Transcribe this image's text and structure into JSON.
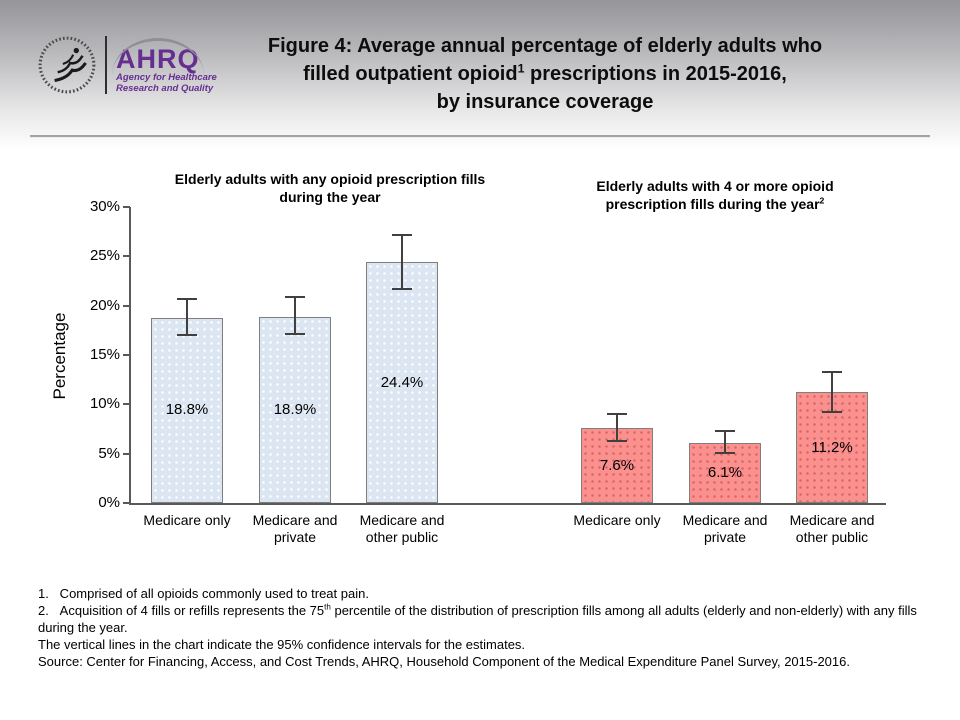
{
  "header": {
    "logo": {
      "acronym": "AHRQ",
      "tagline_line1": "Agency for Healthcare",
      "tagline_line2": "Research and Quality",
      "brand_color": "#662e91"
    },
    "title_line1": "Figure 4: Average annual percentage of elderly adults who",
    "title_line2_pre": "filled outpatient opioid",
    "title_line2_sup": "1",
    "title_line2_post": " prescriptions in 2015-2016,",
    "title_line3": "by insurance coverage"
  },
  "chart_data": {
    "type": "bar",
    "title": "Figure 4: Average annual percentage of elderly adults who filled outpatient opioid prescriptions in 2015-2016, by insurance coverage",
    "ylabel": "Percentage",
    "ylim": [
      0,
      30
    ],
    "ytick_step": 5,
    "ytick_suffix": "%",
    "grid": false,
    "legend": "none",
    "error_bars": "95% confidence intervals",
    "axis_color": "#595959",
    "ci_color": "#404040",
    "groups": [
      {
        "subtitle": "Elderly adults with any opioid prescription fills during the year",
        "subtitle_sup": "",
        "bar_color": "#dce6f2",
        "bar_border_color": "#7f7f7f",
        "categories": [
          "Medicare only",
          "Medicare and private",
          "Medicare and other public"
        ],
        "values": [
          18.8,
          18.9,
          24.4
        ],
        "labels": [
          "18.8%",
          "18.9%",
          "24.4%"
        ],
        "ci_low": [
          17.0,
          17.1,
          21.7
        ],
        "ci_high": [
          20.7,
          20.9,
          27.2
        ]
      },
      {
        "subtitle": "Elderly adults with 4 or more opioid prescription fills during the year",
        "subtitle_sup": "2",
        "bar_color": "#fa918e",
        "bar_border_color": "#7f7f7f",
        "categories": [
          "Medicare only",
          "Medicare and private",
          "Medicare and other public"
        ],
        "values": [
          7.6,
          6.1,
          11.2
        ],
        "labels": [
          "7.6%",
          "6.1%",
          "11.2%"
        ],
        "ci_low": [
          6.3,
          5.1,
          9.2
        ],
        "ci_high": [
          9.0,
          7.3,
          13.3
        ]
      }
    ]
  },
  "footnotes": {
    "note1": "1.   Comprised of all opioids commonly used to treat pain.",
    "note2_pre": "2.   Acquisition of 4 fills or refills represents the 75",
    "note2_sup": "th",
    "note2_post": " percentile of the distribution of prescription fills among all adults (elderly and non-elderly) with any fills during the year.",
    "note3": "The vertical lines in the chart indicate the 95% confidence intervals for the estimates.",
    "source": "Source: Center for Financing, Access, and Cost Trends, AHRQ, Household Component of the Medical Expenditure Panel Survey, 2015-2016."
  }
}
